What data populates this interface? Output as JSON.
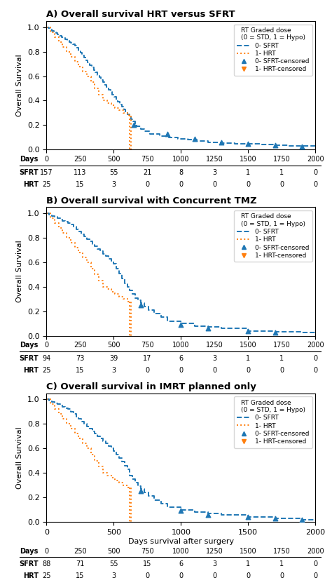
{
  "chart_data": [
    {
      "type": "line",
      "title": "A) Overall survival HRT versus SFRT",
      "ylabel": "Overall Survival",
      "xlim": [
        0,
        2000
      ],
      "ylim": [
        0.0,
        1.05
      ],
      "xticks": [
        0,
        500,
        1000,
        1500,
        2000
      ],
      "yticks": [
        0.0,
        0.2,
        0.4,
        0.6,
        0.8,
        1.0
      ],
      "tick_labels": "y",
      "legend": "upper right",
      "legend_title": "RT Graded dose\n(0 = STD, 1 = Hypo)",
      "series": [
        {
          "name": "0- SFRT",
          "type": "step",
          "line_style": "dashed",
          "x": [
            0,
            14,
            28,
            42,
            56,
            70,
            84,
            98,
            112,
            126,
            140,
            154,
            168,
            182,
            196,
            210,
            224,
            238,
            252,
            266,
            280,
            294,
            308,
            322,
            336,
            350,
            364,
            378,
            392,
            406,
            420,
            434,
            448,
            462,
            476,
            490,
            504,
            518,
            532,
            546,
            560,
            574,
            588,
            602,
            616,
            630,
            644,
            658,
            672,
            700,
            730,
            770,
            840,
            910,
            980,
            1050,
            1120,
            1200,
            1300,
            1400,
            1500,
            1600,
            1700,
            1800,
            1900,
            2000
          ],
          "values": [
            1.0,
            0.99,
            0.98,
            0.97,
            0.96,
            0.95,
            0.94,
            0.93,
            0.92,
            0.91,
            0.9,
            0.89,
            0.88,
            0.87,
            0.86,
            0.85,
            0.83,
            0.81,
            0.79,
            0.77,
            0.75,
            0.73,
            0.71,
            0.69,
            0.67,
            0.65,
            0.63,
            0.61,
            0.59,
            0.57,
            0.55,
            0.53,
            0.51,
            0.49,
            0.47,
            0.45,
            0.43,
            0.41,
            0.39,
            0.37,
            0.35,
            0.33,
            0.31,
            0.29,
            0.27,
            0.25,
            0.23,
            0.21,
            0.19,
            0.17,
            0.15,
            0.13,
            0.11,
            0.1,
            0.09,
            0.08,
            0.07,
            0.06,
            0.055,
            0.05,
            0.045,
            0.04,
            0.035,
            0.03,
            0.028,
            0.025
          ]
        },
        {
          "name": "1- HRT",
          "type": "step",
          "line_style": "dotted",
          "x": [
            0,
            30,
            60,
            90,
            120,
            150,
            180,
            210,
            240,
            270,
            300,
            330,
            360,
            390,
            420,
            450,
            480,
            510,
            540,
            570,
            600,
            630
          ],
          "values": [
            1.0,
            0.96,
            0.92,
            0.88,
            0.84,
            0.8,
            0.76,
            0.72,
            0.68,
            0.64,
            0.6,
            0.55,
            0.5,
            0.45,
            0.4,
            0.38,
            0.36,
            0.34,
            0.32,
            0.3,
            0.28,
            0.0
          ],
          "drop": {
            "x": 620,
            "from": 0.28,
            "to": 0.0
          }
        },
        {
          "name": "0- SFRT-censored",
          "type": "scatter",
          "marker": "triangle_up",
          "x": [
            650,
            900,
            1100,
            1300,
            1500,
            1700,
            1900
          ],
          "values": [
            0.2,
            0.13,
            0.09,
            0.06,
            0.045,
            0.035,
            0.025
          ]
        },
        {
          "name": "1- HRT-censored",
          "type": "scatter",
          "marker": "triangle_down",
          "x": [],
          "values": []
        }
      ],
      "table": {
        "header": "Days",
        "x": [
          0,
          250,
          500,
          750,
          1000,
          1250,
          1500,
          1750,
          2000
        ],
        "rows": [
          {
            "name": "SFRT",
            "values": [
              157,
              113,
              55,
              21,
              8,
              3,
              1,
              1,
              0
            ]
          },
          {
            "name": "HRT",
            "values": [
              25,
              15,
              3,
              0,
              0,
              0,
              0,
              0,
              0
            ]
          }
        ]
      }
    },
    {
      "type": "line",
      "title": "B) Overall survival with Concurrent TMZ",
      "ylabel": "Overall Survival",
      "xlim": [
        0,
        2000
      ],
      "ylim": [
        0.0,
        1.05
      ],
      "xticks": [
        0,
        500,
        1000,
        1500,
        2000
      ],
      "yticks": [
        0.0,
        0.2,
        0.4,
        0.6,
        0.8,
        1.0
      ],
      "tick_labels": "y",
      "legend": "upper right",
      "legend_title": "RT Graded dose\n(0 = STD, 1 = Hypo)",
      "series": [
        {
          "name": "0- SFRT",
          "type": "step",
          "line_style": "dashed",
          "x": [
            0,
            20,
            40,
            60,
            80,
            100,
            120,
            140,
            160,
            180,
            200,
            220,
            240,
            260,
            280,
            300,
            320,
            340,
            360,
            380,
            400,
            420,
            440,
            460,
            480,
            500,
            520,
            540,
            560,
            580,
            600,
            620,
            640,
            660,
            680,
            700,
            730,
            760,
            800,
            850,
            900,
            1000,
            1100,
            1200,
            1300,
            1500,
            1700,
            1900,
            2000
          ],
          "values": [
            1.0,
            0.99,
            0.98,
            0.97,
            0.96,
            0.95,
            0.94,
            0.93,
            0.92,
            0.91,
            0.89,
            0.87,
            0.85,
            0.83,
            0.81,
            0.79,
            0.77,
            0.75,
            0.73,
            0.71,
            0.69,
            0.67,
            0.65,
            0.63,
            0.61,
            0.59,
            0.55,
            0.51,
            0.47,
            0.43,
            0.4,
            0.37,
            0.34,
            0.31,
            0.29,
            0.27,
            0.24,
            0.21,
            0.18,
            0.15,
            0.12,
            0.1,
            0.08,
            0.07,
            0.06,
            0.04,
            0.03,
            0.025,
            0.02
          ]
        },
        {
          "name": "1- HRT",
          "type": "step",
          "line_style": "dotted",
          "x": [
            0,
            30,
            60,
            90,
            120,
            150,
            180,
            210,
            240,
            270,
            300,
            330,
            360,
            390,
            420,
            450,
            480,
            510,
            540,
            570,
            600,
            630
          ],
          "values": [
            1.0,
            0.96,
            0.92,
            0.88,
            0.84,
            0.8,
            0.76,
            0.72,
            0.68,
            0.64,
            0.6,
            0.55,
            0.5,
            0.45,
            0.4,
            0.38,
            0.36,
            0.34,
            0.32,
            0.3,
            0.28,
            0.0
          ],
          "drop": {
            "x": 620,
            "from": 0.28,
            "to": 0.0
          }
        },
        {
          "name": "0- SFRT-censored",
          "type": "scatter",
          "marker": "triangle_up",
          "x": [
            700,
            1000,
            1200,
            1500,
            1700
          ],
          "values": [
            0.25,
            0.09,
            0.06,
            0.04,
            0.025
          ]
        },
        {
          "name": "1- HRT-censored",
          "type": "scatter",
          "marker": "triangle_down",
          "x": [],
          "values": []
        }
      ],
      "table": {
        "header": "Days",
        "x": [
          0,
          250,
          500,
          750,
          1000,
          1250,
          1500,
          1750,
          2000
        ],
        "rows": [
          {
            "name": "SFRT",
            "values": [
              94,
              73,
              39,
              17,
              6,
              3,
              1,
              1,
              0
            ]
          },
          {
            "name": "HRT",
            "values": [
              25,
              15,
              3,
              0,
              0,
              0,
              0,
              0,
              0
            ]
          }
        ]
      }
    },
    {
      "type": "line",
      "title": "C) Overall survival in IMRT planned only",
      "ylabel": "Overall Survival",
      "xlabel": "Days survival after surgery",
      "xlim": [
        0,
        2000
      ],
      "ylim": [
        0.0,
        1.05
      ],
      "xticks": [
        0,
        500,
        1000,
        1500,
        2000
      ],
      "yticks": [
        0.0,
        0.2,
        0.4,
        0.6,
        0.8,
        1.0
      ],
      "legend": "upper right",
      "legend_title": "RT Graded dose\n(0 = STD, 1 = Hypo)",
      "series": [
        {
          "name": "0- SFRT",
          "type": "step",
          "line_style": "dashed",
          "x": [
            0,
            20,
            40,
            60,
            80,
            100,
            120,
            140,
            160,
            180,
            200,
            220,
            240,
            260,
            280,
            300,
            320,
            340,
            360,
            380,
            400,
            420,
            440,
            460,
            480,
            500,
            520,
            540,
            560,
            580,
            600,
            620,
            640,
            660,
            680,
            700,
            730,
            760,
            800,
            850,
            900,
            1000,
            1100,
            1200,
            1300,
            1500,
            1700,
            1900,
            2000
          ],
          "values": [
            1.0,
            0.99,
            0.98,
            0.97,
            0.96,
            0.95,
            0.94,
            0.93,
            0.92,
            0.9,
            0.88,
            0.86,
            0.84,
            0.82,
            0.8,
            0.78,
            0.76,
            0.74,
            0.72,
            0.7,
            0.68,
            0.66,
            0.64,
            0.62,
            0.6,
            0.58,
            0.55,
            0.52,
            0.49,
            0.46,
            0.43,
            0.38,
            0.35,
            0.32,
            0.29,
            0.27,
            0.24,
            0.21,
            0.18,
            0.15,
            0.12,
            0.1,
            0.08,
            0.07,
            0.055,
            0.04,
            0.03,
            0.015,
            0.01
          ]
        },
        {
          "name": "1- HRT",
          "type": "step",
          "line_style": "dotted",
          "x": [
            0,
            30,
            60,
            90,
            120,
            150,
            180,
            210,
            240,
            270,
            300,
            330,
            360,
            390,
            420,
            450,
            480,
            510,
            540,
            570,
            600,
            630
          ],
          "values": [
            1.0,
            0.96,
            0.92,
            0.88,
            0.84,
            0.8,
            0.76,
            0.72,
            0.68,
            0.64,
            0.6,
            0.55,
            0.5,
            0.45,
            0.4,
            0.38,
            0.36,
            0.34,
            0.32,
            0.3,
            0.28,
            0.0
          ],
          "drop": {
            "x": 620,
            "from": 0.28,
            "to": 0.0
          }
        },
        {
          "name": "0- SFRT-censored",
          "type": "scatter",
          "marker": "triangle_up",
          "x": [
            700,
            1000,
            1200,
            1500,
            1700,
            1900
          ],
          "values": [
            0.25,
            0.09,
            0.06,
            0.04,
            0.03,
            0.015
          ]
        },
        {
          "name": "1- HRT-censored",
          "type": "scatter",
          "marker": "triangle_down",
          "x": [],
          "values": []
        }
      ],
      "table": {
        "header": "Days",
        "x": [
          0,
          250,
          500,
          750,
          1000,
          1250,
          1500,
          1750,
          2000
        ],
        "rows": [
          {
            "name": "SFRT",
            "values": [
              88,
              71,
              55,
              15,
              6,
              3,
              1,
              1,
              0
            ]
          },
          {
            "name": "HRT",
            "values": [
              25,
              15,
              3,
              0,
              0,
              0,
              0,
              0,
              0
            ]
          }
        ]
      }
    }
  ]
}
